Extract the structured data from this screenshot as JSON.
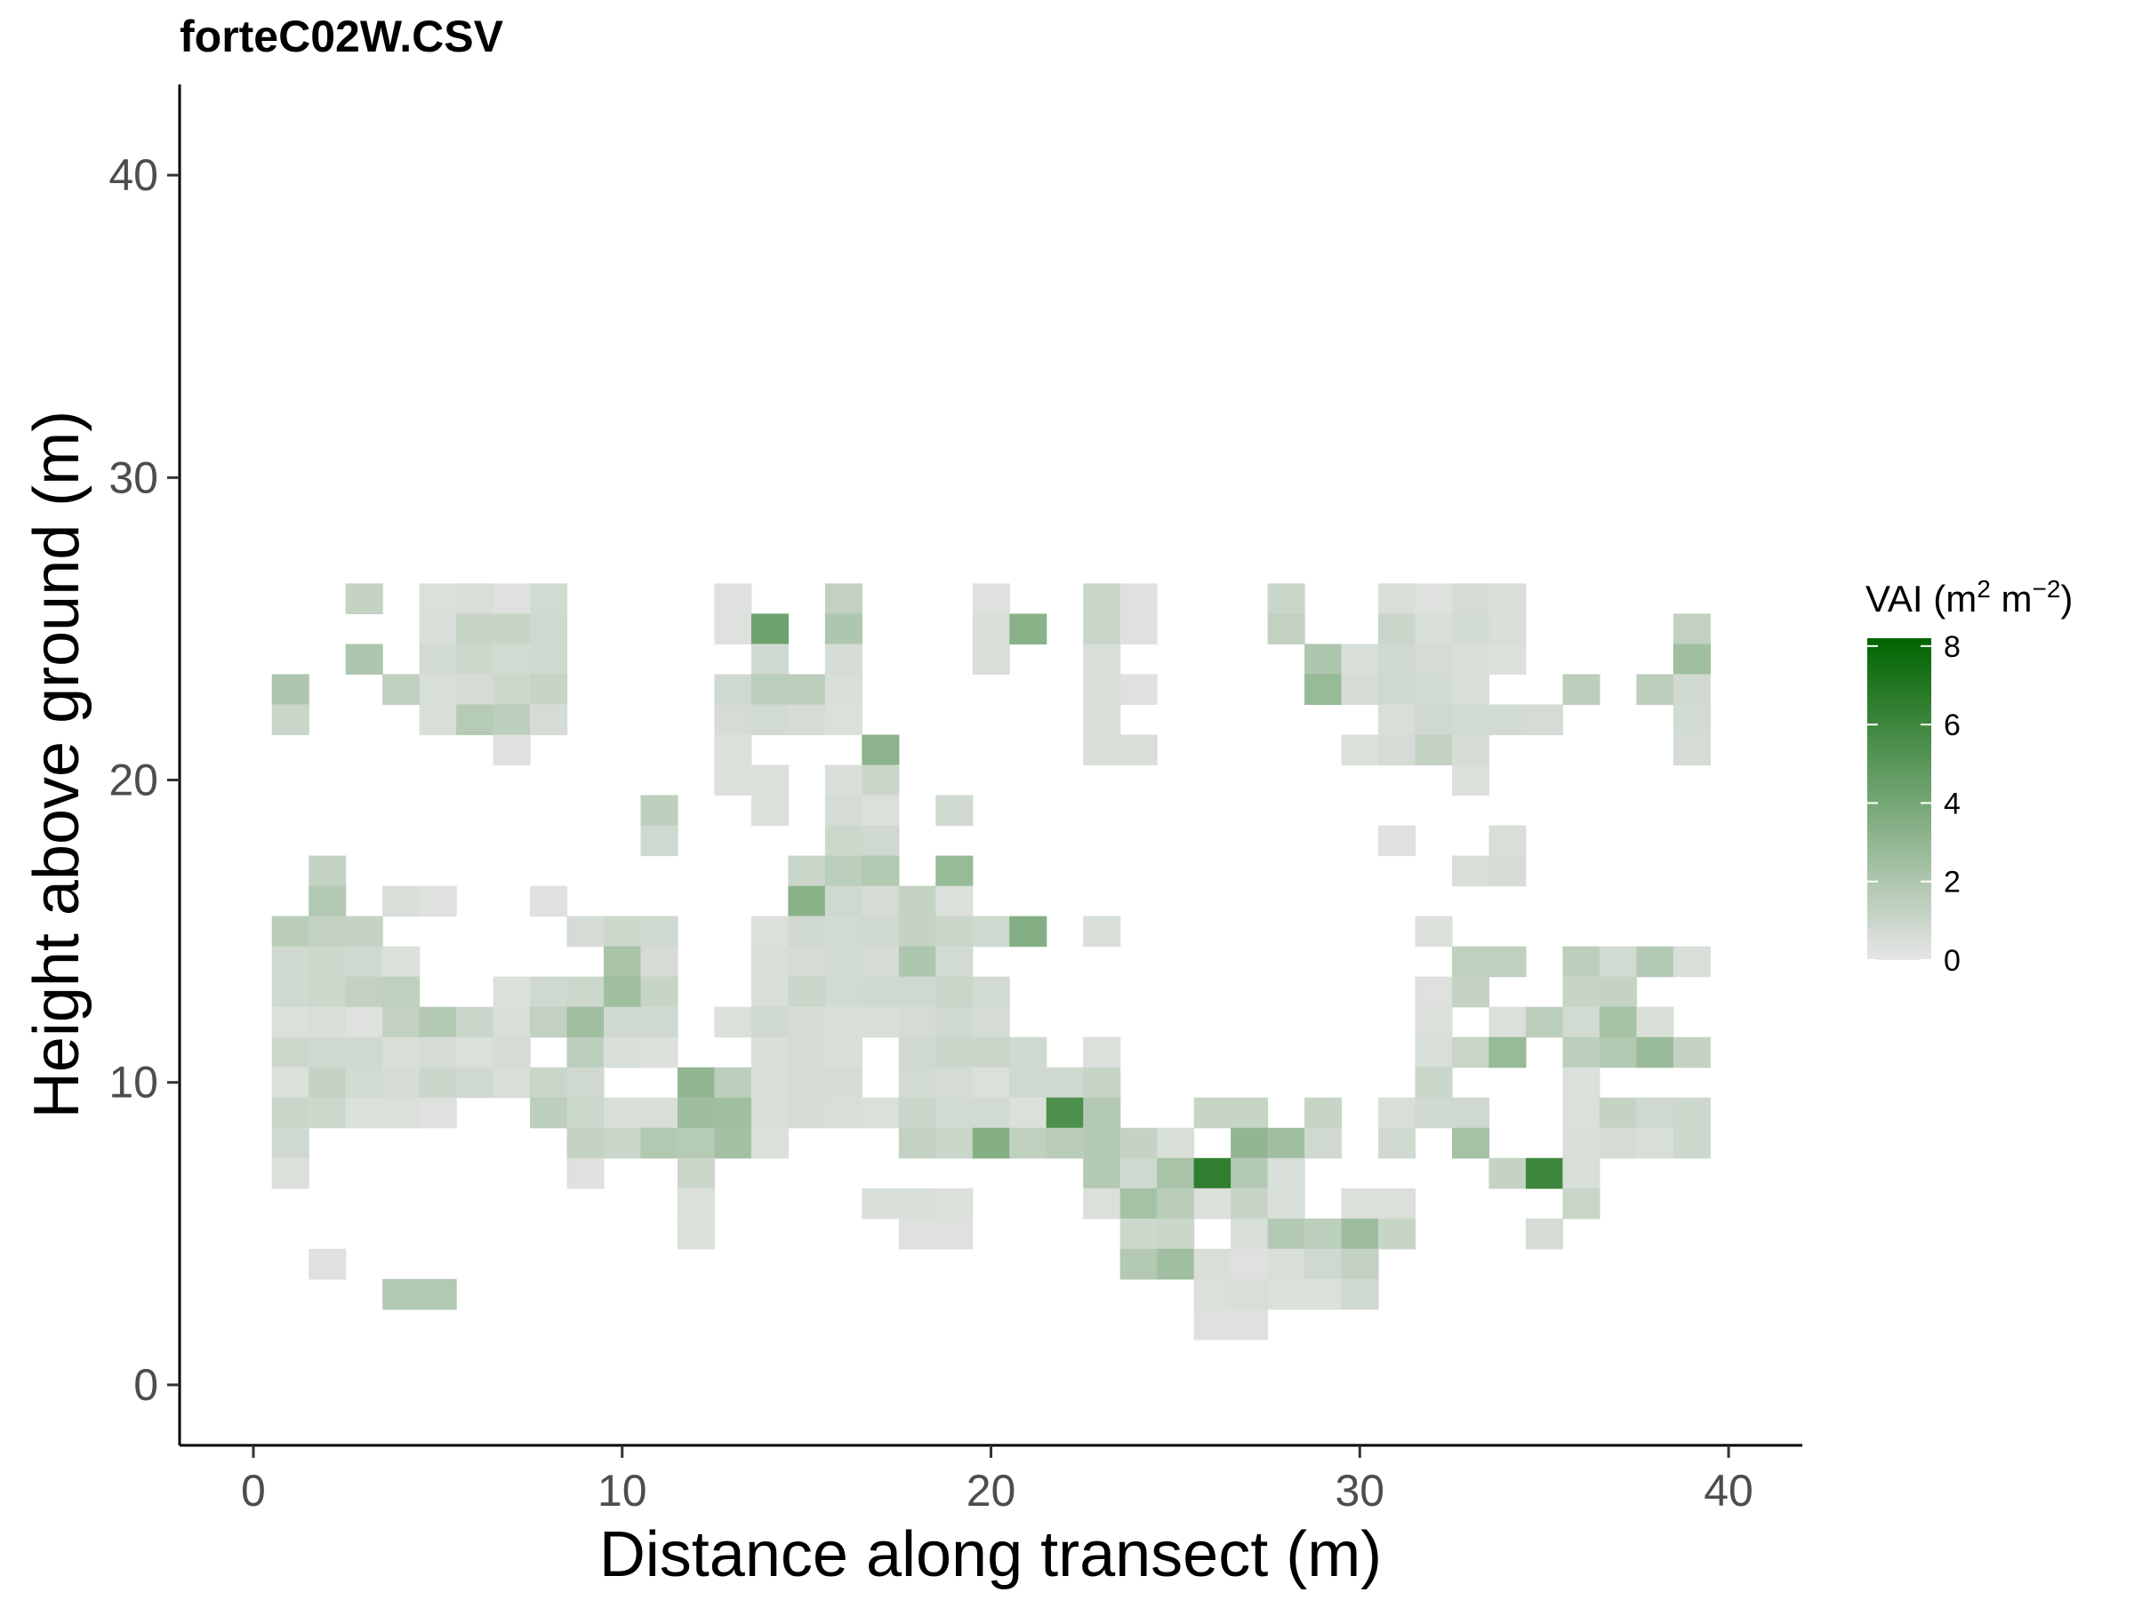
{
  "chart_data": {
    "type": "heatmap",
    "title": "forteC02W.CSV",
    "xlabel": "Distance along transect (m)",
    "ylabel": "Height above ground (m)",
    "xlim": [
      -2,
      42
    ],
    "ylim": [
      -2,
      43
    ],
    "xticks": [
      0,
      10,
      20,
      30,
      40
    ],
    "yticks": [
      0,
      10,
      20,
      30,
      40
    ],
    "cell_width": 1,
    "cell_height": 1,
    "grid": false,
    "legend": {
      "title": "VAI (m² m⁻²)",
      "title_parts": {
        "prefix": "VAI (m",
        "sup1": "2",
        "mid": " m",
        "sup2": "−2",
        "suffix": ")"
      },
      "ticks": [
        0,
        2,
        4,
        6,
        8
      ],
      "range": [
        0,
        8.2
      ],
      "low_color": "#e6e6e6",
      "high_color": "#006400",
      "position": "right"
    },
    "cells": [
      [
        3,
        26,
        1.2
      ],
      [
        5,
        26,
        0.4
      ],
      [
        6,
        26,
        0.5
      ],
      [
        7,
        26,
        0.3
      ],
      [
        8,
        26,
        0.7
      ],
      [
        13,
        26,
        0.3
      ],
      [
        16,
        26,
        1.3
      ],
      [
        20,
        26,
        0.3
      ],
      [
        23,
        26,
        1
      ],
      [
        24,
        26,
        0.3
      ],
      [
        28,
        26,
        1
      ],
      [
        31,
        26,
        0.5
      ],
      [
        32,
        26,
        0.3
      ],
      [
        33,
        26,
        0.6
      ],
      [
        34,
        26,
        0.5
      ],
      [
        5,
        25,
        0.5
      ],
      [
        6,
        25,
        1.1
      ],
      [
        7,
        25,
        1.1
      ],
      [
        8,
        25,
        0.8
      ],
      [
        13,
        25,
        0.3
      ],
      [
        14,
        25,
        4.3
      ],
      [
        16,
        25,
        2
      ],
      [
        20,
        25,
        0.5
      ],
      [
        21,
        25,
        3.3
      ],
      [
        23,
        25,
        1
      ],
      [
        24,
        25,
        0.3
      ],
      [
        28,
        25,
        1.3
      ],
      [
        31,
        25,
        1
      ],
      [
        32,
        25,
        0.5
      ],
      [
        33,
        25,
        0.7
      ],
      [
        34,
        25,
        0.5
      ],
      [
        39,
        25,
        1.3
      ],
      [
        3,
        24,
        2
      ],
      [
        5,
        24,
        0.7
      ],
      [
        6,
        24,
        0.9
      ],
      [
        7,
        24,
        0.7
      ],
      [
        8,
        24,
        0.8
      ],
      [
        14,
        24,
        0.8
      ],
      [
        16,
        24,
        0.6
      ],
      [
        20,
        24,
        0.5
      ],
      [
        23,
        24,
        0.5
      ],
      [
        29,
        24,
        2
      ],
      [
        30,
        24,
        0.5
      ],
      [
        31,
        24,
        0.8
      ],
      [
        32,
        24,
        0.6
      ],
      [
        33,
        24,
        0.5
      ],
      [
        34,
        24,
        0.4
      ],
      [
        39,
        24,
        2.5
      ],
      [
        1,
        23,
        2
      ],
      [
        4,
        23,
        1.4
      ],
      [
        5,
        23,
        0.5
      ],
      [
        6,
        23,
        0.6
      ],
      [
        7,
        23,
        0.9
      ],
      [
        8,
        23,
        1.1
      ],
      [
        13,
        23,
        0.8
      ],
      [
        14,
        23,
        1.5
      ],
      [
        15,
        23,
        1.5
      ],
      [
        16,
        23,
        0.5
      ],
      [
        23,
        23,
        0.5
      ],
      [
        24,
        23,
        0.3
      ],
      [
        29,
        23,
        2.8
      ],
      [
        30,
        23,
        0.6
      ],
      [
        31,
        23,
        0.8
      ],
      [
        32,
        23,
        0.7
      ],
      [
        33,
        23,
        0.5
      ],
      [
        36,
        23,
        1.5
      ],
      [
        38,
        23,
        1.5
      ],
      [
        39,
        23,
        0.8
      ],
      [
        1,
        22,
        1
      ],
      [
        5,
        22,
        0.5
      ],
      [
        6,
        22,
        1.7
      ],
      [
        7,
        22,
        1.5
      ],
      [
        8,
        22,
        0.6
      ],
      [
        13,
        22,
        0.6
      ],
      [
        14,
        22,
        0.7
      ],
      [
        15,
        22,
        0.6
      ],
      [
        16,
        22,
        0.4
      ],
      [
        23,
        22,
        0.5
      ],
      [
        31,
        22,
        0.5
      ],
      [
        32,
        22,
        0.8
      ],
      [
        33,
        22,
        0.7
      ],
      [
        34,
        22,
        0.7
      ],
      [
        35,
        22,
        0.6
      ],
      [
        39,
        22,
        0.7
      ],
      [
        7,
        21,
        0.3
      ],
      [
        13,
        21,
        0.4
      ],
      [
        17,
        21,
        3.2
      ],
      [
        23,
        21,
        0.5
      ],
      [
        24,
        21,
        0.5
      ],
      [
        30,
        21,
        0.4
      ],
      [
        31,
        21,
        0.6
      ],
      [
        32,
        21,
        1.3
      ],
      [
        33,
        21,
        0.6
      ],
      [
        39,
        21,
        0.6
      ],
      [
        13,
        20,
        0.4
      ],
      [
        14,
        20,
        0.4
      ],
      [
        16,
        20,
        0.5
      ],
      [
        17,
        20,
        1
      ],
      [
        33,
        20,
        0.4
      ],
      [
        11,
        19,
        1.5
      ],
      [
        14,
        19,
        0.4
      ],
      [
        16,
        19,
        0.6
      ],
      [
        17,
        19,
        0.4
      ],
      [
        19,
        19,
        0.8
      ],
      [
        11,
        18,
        0.8
      ],
      [
        16,
        18,
        0.9
      ],
      [
        17,
        18,
        0.8
      ],
      [
        31,
        18,
        0.3
      ],
      [
        34,
        18,
        0.5
      ],
      [
        2,
        17,
        1.2
      ],
      [
        15,
        17,
        1
      ],
      [
        16,
        17,
        1.5
      ],
      [
        17,
        17,
        1.9
      ],
      [
        19,
        17,
        2.8
      ],
      [
        33,
        17,
        0.5
      ],
      [
        34,
        17,
        0.6
      ],
      [
        2,
        16,
        1.8
      ],
      [
        4,
        16,
        0.5
      ],
      [
        5,
        16,
        0.3
      ],
      [
        8,
        16,
        0.3
      ],
      [
        15,
        16,
        3.3
      ],
      [
        16,
        16,
        0.8
      ],
      [
        17,
        16,
        0.6
      ],
      [
        18,
        16,
        1.2
      ],
      [
        19,
        16,
        0.4
      ],
      [
        1,
        15,
        1.6
      ],
      [
        2,
        15,
        1.3
      ],
      [
        3,
        15,
        1.2
      ],
      [
        9,
        15,
        0.6
      ],
      [
        10,
        15,
        0.9
      ],
      [
        11,
        15,
        0.8
      ],
      [
        14,
        15,
        0.4
      ],
      [
        15,
        15,
        0.8
      ],
      [
        16,
        15,
        0.7
      ],
      [
        17,
        15,
        0.8
      ],
      [
        18,
        15,
        1.2
      ],
      [
        19,
        15,
        1
      ],
      [
        20,
        15,
        0.8
      ],
      [
        21,
        15,
        3.5
      ],
      [
        23,
        15,
        0.5
      ],
      [
        32,
        15,
        0.4
      ],
      [
        1,
        14,
        0.8
      ],
      [
        2,
        14,
        0.9
      ],
      [
        3,
        14,
        0.8
      ],
      [
        4,
        14,
        0.4
      ],
      [
        10,
        14,
        2.2
      ],
      [
        11,
        14,
        0.6
      ],
      [
        14,
        14,
        0.5
      ],
      [
        15,
        14,
        0.6
      ],
      [
        16,
        14,
        0.7
      ],
      [
        17,
        14,
        0.6
      ],
      [
        18,
        14,
        2
      ],
      [
        19,
        14,
        0.7
      ],
      [
        33,
        14,
        1.4
      ],
      [
        34,
        14,
        1.4
      ],
      [
        36,
        14,
        1.5
      ],
      [
        37,
        14,
        0.7
      ],
      [
        38,
        14,
        1.8
      ],
      [
        39,
        14,
        0.5
      ],
      [
        1,
        13,
        0.8
      ],
      [
        2,
        13,
        0.9
      ],
      [
        3,
        13,
        1.3
      ],
      [
        4,
        13,
        1.4
      ],
      [
        7,
        13,
        0.4
      ],
      [
        8,
        13,
        0.8
      ],
      [
        9,
        13,
        0.9
      ],
      [
        10,
        13,
        2.5
      ],
      [
        11,
        13,
        1.1
      ],
      [
        14,
        13,
        0.5
      ],
      [
        15,
        13,
        1
      ],
      [
        16,
        13,
        0.7
      ],
      [
        17,
        13,
        0.8
      ],
      [
        18,
        13,
        0.8
      ],
      [
        19,
        13,
        1
      ],
      [
        20,
        13,
        0.7
      ],
      [
        32,
        13,
        0.3
      ],
      [
        33,
        13,
        1.2
      ],
      [
        36,
        13,
        1.1
      ],
      [
        37,
        13,
        1.2
      ],
      [
        1,
        12,
        0.4
      ],
      [
        2,
        12,
        0.5
      ],
      [
        3,
        12,
        0.3
      ],
      [
        4,
        12,
        1.3
      ],
      [
        5,
        12,
        1.8
      ],
      [
        6,
        12,
        1
      ],
      [
        7,
        12,
        0.5
      ],
      [
        8,
        12,
        1.3
      ],
      [
        9,
        12,
        2.5
      ],
      [
        10,
        12,
        0.8
      ],
      [
        11,
        12,
        0.8
      ],
      [
        13,
        12,
        0.4
      ],
      [
        14,
        12,
        0.8
      ],
      [
        15,
        12,
        0.6
      ],
      [
        16,
        12,
        0.5
      ],
      [
        17,
        12,
        0.5
      ],
      [
        18,
        12,
        0.6
      ],
      [
        19,
        12,
        0.8
      ],
      [
        20,
        12,
        0.6
      ],
      [
        32,
        12,
        0.4
      ],
      [
        34,
        12,
        0.4
      ],
      [
        35,
        12,
        1.5
      ],
      [
        36,
        12,
        0.7
      ],
      [
        37,
        12,
        2.3
      ],
      [
        38,
        12,
        0.5
      ],
      [
        1,
        11,
        0.9
      ],
      [
        2,
        11,
        0.8
      ],
      [
        3,
        11,
        0.8
      ],
      [
        4,
        11,
        0.5
      ],
      [
        5,
        11,
        0.6
      ],
      [
        6,
        11,
        0.4
      ],
      [
        7,
        11,
        0.6
      ],
      [
        9,
        11,
        1.5
      ],
      [
        10,
        11,
        0.5
      ],
      [
        11,
        11,
        0.4
      ],
      [
        14,
        11,
        0.5
      ],
      [
        15,
        11,
        0.6
      ],
      [
        16,
        11,
        0.5
      ],
      [
        18,
        11,
        0.8
      ],
      [
        19,
        11,
        1
      ],
      [
        20,
        11,
        1
      ],
      [
        21,
        11,
        0.8
      ],
      [
        23,
        11,
        0.4
      ],
      [
        32,
        11,
        0.5
      ],
      [
        33,
        11,
        1
      ],
      [
        34,
        11,
        2.8
      ],
      [
        36,
        11,
        1.5
      ],
      [
        37,
        11,
        1.8
      ],
      [
        38,
        11,
        2.7
      ],
      [
        39,
        11,
        1.2
      ],
      [
        1,
        10,
        0.4
      ],
      [
        2,
        10,
        1.2
      ],
      [
        3,
        10,
        0.7
      ],
      [
        4,
        10,
        0.6
      ],
      [
        5,
        10,
        1
      ],
      [
        6,
        10,
        0.8
      ],
      [
        7,
        10,
        0.5
      ],
      [
        8,
        10,
        1
      ],
      [
        9,
        10,
        0.8
      ],
      [
        12,
        10,
        3
      ],
      [
        13,
        10,
        1.5
      ],
      [
        14,
        10,
        0.5
      ],
      [
        15,
        10,
        0.6
      ],
      [
        16,
        10,
        0.6
      ],
      [
        18,
        10,
        0.7
      ],
      [
        19,
        10,
        0.6
      ],
      [
        20,
        10,
        0.4
      ],
      [
        21,
        10,
        0.8
      ],
      [
        22,
        10,
        0.8
      ],
      [
        23,
        10,
        1.1
      ],
      [
        32,
        10,
        1
      ],
      [
        36,
        10,
        0.4
      ],
      [
        1,
        9,
        1
      ],
      [
        2,
        9,
        0.9
      ],
      [
        3,
        9,
        0.4
      ],
      [
        4,
        9,
        0.4
      ],
      [
        5,
        9,
        0.3
      ],
      [
        8,
        9,
        1.5
      ],
      [
        9,
        9,
        0.9
      ],
      [
        10,
        9,
        0.5
      ],
      [
        11,
        9,
        0.5
      ],
      [
        12,
        9,
        2.6
      ],
      [
        13,
        9,
        2.5
      ],
      [
        14,
        9,
        0.5
      ],
      [
        15,
        9,
        0.6
      ],
      [
        16,
        9,
        0.5
      ],
      [
        17,
        9,
        0.4
      ],
      [
        18,
        9,
        1
      ],
      [
        19,
        9,
        0.7
      ],
      [
        20,
        9,
        0.7
      ],
      [
        21,
        9,
        0.4
      ],
      [
        22,
        9,
        5.5
      ],
      [
        23,
        9,
        1.8
      ],
      [
        26,
        9,
        1.1
      ],
      [
        27,
        9,
        1.1
      ],
      [
        29,
        9,
        1.1
      ],
      [
        31,
        9,
        0.5
      ],
      [
        32,
        9,
        0.8
      ],
      [
        33,
        9,
        0.8
      ],
      [
        36,
        9,
        0.4
      ],
      [
        37,
        9,
        1.2
      ],
      [
        38,
        9,
        0.8
      ],
      [
        39,
        9,
        0.9
      ],
      [
        1,
        8,
        0.8
      ],
      [
        9,
        8,
        1.2
      ],
      [
        10,
        8,
        1
      ],
      [
        11,
        8,
        1.9
      ],
      [
        12,
        8,
        1.7
      ],
      [
        13,
        8,
        2.4
      ],
      [
        14,
        8,
        0.4
      ],
      [
        18,
        8,
        1.3
      ],
      [
        19,
        8,
        1
      ],
      [
        20,
        8,
        3.5
      ],
      [
        21,
        8,
        1.4
      ],
      [
        22,
        8,
        1.6
      ],
      [
        23,
        8,
        1.8
      ],
      [
        24,
        8,
        1.2
      ],
      [
        25,
        8,
        0.5
      ],
      [
        27,
        8,
        3
      ],
      [
        28,
        8,
        2.5
      ],
      [
        29,
        8,
        0.8
      ],
      [
        31,
        8,
        0.8
      ],
      [
        33,
        8,
        2.3
      ],
      [
        36,
        8,
        0.5
      ],
      [
        37,
        8,
        0.6
      ],
      [
        38,
        8,
        0.5
      ],
      [
        39,
        8,
        0.9
      ],
      [
        1,
        7,
        0.4
      ],
      [
        9,
        7,
        0.3
      ],
      [
        12,
        7,
        1
      ],
      [
        23,
        7,
        1.8
      ],
      [
        24,
        7,
        0.8
      ],
      [
        25,
        7,
        2.2
      ],
      [
        26,
        7,
        6.5
      ],
      [
        27,
        7,
        1.8
      ],
      [
        28,
        7,
        0.5
      ],
      [
        34,
        7,
        1.2
      ],
      [
        35,
        7,
        6
      ],
      [
        36,
        7,
        0.5
      ],
      [
        12,
        6,
        0.4
      ],
      [
        17,
        6,
        0.5
      ],
      [
        18,
        6,
        0.5
      ],
      [
        19,
        6,
        0.4
      ],
      [
        23,
        6,
        0.4
      ],
      [
        24,
        6,
        2.3
      ],
      [
        25,
        6,
        1.6
      ],
      [
        26,
        6,
        0.4
      ],
      [
        27,
        6,
        1.1
      ],
      [
        28,
        6,
        0.5
      ],
      [
        30,
        6,
        0.4
      ],
      [
        31,
        6,
        0.4
      ],
      [
        36,
        6,
        1
      ],
      [
        12,
        5,
        0.4
      ],
      [
        18,
        5,
        0.3
      ],
      [
        19,
        5,
        0.3
      ],
      [
        24,
        5,
        0.9
      ],
      [
        25,
        5,
        1
      ],
      [
        27,
        5,
        0.5
      ],
      [
        28,
        5,
        1.8
      ],
      [
        29,
        5,
        1.5
      ],
      [
        30,
        5,
        2.6
      ],
      [
        31,
        5,
        1.1
      ],
      [
        35,
        5,
        0.6
      ],
      [
        2,
        4,
        0.3
      ],
      [
        24,
        4,
        1.8
      ],
      [
        25,
        4,
        2.5
      ],
      [
        26,
        4,
        0.5
      ],
      [
        27,
        4,
        0.3
      ],
      [
        28,
        4,
        0.5
      ],
      [
        29,
        4,
        0.8
      ],
      [
        30,
        4,
        1.3
      ],
      [
        4,
        3,
        1.8
      ],
      [
        5,
        3,
        1.9
      ],
      [
        26,
        3,
        0.4
      ],
      [
        27,
        3,
        0.5
      ],
      [
        28,
        3,
        0.4
      ],
      [
        29,
        3,
        0.4
      ],
      [
        30,
        3,
        0.8
      ],
      [
        26,
        2,
        0.3
      ],
      [
        27,
        2,
        0.3
      ]
    ]
  }
}
